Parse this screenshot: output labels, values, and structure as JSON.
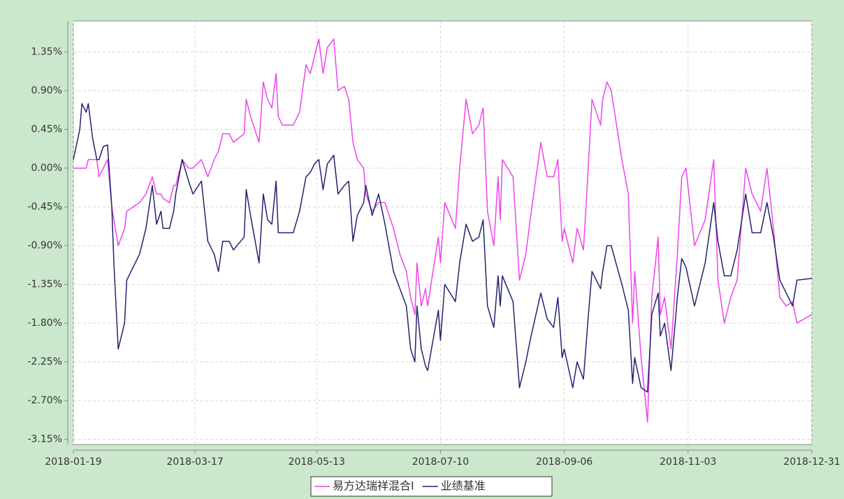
{
  "chart_data": {
    "type": "line",
    "x": [
      "2018-01-19",
      "2018-01-22",
      "2018-01-23",
      "2018-01-25",
      "2018-01-26",
      "2018-01-28",
      "2018-01-30",
      "2018-01-31",
      "2018-02-02",
      "2018-02-04",
      "2018-02-06",
      "2018-02-07",
      "2018-02-09",
      "2018-02-12",
      "2018-02-13",
      "2018-02-19",
      "2018-02-22",
      "2018-02-25",
      "2018-02-27",
      "2018-03-01",
      "2018-03-02",
      "2018-03-05",
      "2018-03-07",
      "2018-03-08",
      "2018-03-11",
      "2018-03-14",
      "2018-03-16",
      "2018-03-20",
      "2018-03-23",
      "2018-03-26",
      "2018-03-28",
      "2018-03-30",
      "2018-04-02",
      "2018-04-04",
      "2018-04-09",
      "2018-04-10",
      "2018-04-12",
      "2018-04-16",
      "2018-04-18",
      "2018-04-20",
      "2018-04-22",
      "2018-04-24",
      "2018-04-25",
      "2018-04-27",
      "2018-05-02",
      "2018-05-05",
      "2018-05-08",
      "2018-05-10",
      "2018-05-12",
      "2018-05-14",
      "2018-05-16",
      "2018-05-18",
      "2018-05-21",
      "2018-05-23",
      "2018-05-26",
      "2018-05-28",
      "2018-05-30",
      "2018-06-01",
      "2018-06-04",
      "2018-06-05",
      "2018-06-08",
      "2018-06-11",
      "2018-06-14",
      "2018-06-18",
      "2018-06-21",
      "2018-06-24",
      "2018-06-26",
      "2018-06-28",
      "2018-06-29",
      "2018-07-01",
      "2018-07-03",
      "2018-07-04",
      "2018-07-09",
      "2018-07-10",
      "2018-07-12",
      "2018-07-17",
      "2018-07-19",
      "2018-07-22",
      "2018-07-25",
      "2018-07-28",
      "2018-07-30",
      "2018-08-01",
      "2018-08-04",
      "2018-08-06",
      "2018-08-07",
      "2018-08-08",
      "2018-08-13",
      "2018-08-16",
      "2018-08-19",
      "2018-08-21",
      "2018-08-26",
      "2018-08-29",
      "2018-09-01",
      "2018-09-03",
      "2018-09-05",
      "2018-09-06",
      "2018-09-10",
      "2018-09-12",
      "2018-09-15",
      "2018-09-17",
      "2018-09-19",
      "2018-09-23",
      "2018-09-24",
      "2018-09-26",
      "2018-09-28",
      "2018-10-03",
      "2018-10-06",
      "2018-10-08",
      "2018-10-09",
      "2018-10-12",
      "2018-10-15",
      "2018-10-17",
      "2018-10-20",
      "2018-10-21",
      "2018-10-23",
      "2018-10-26",
      "2018-10-29",
      "2018-10-31",
      "2018-11-02",
      "2018-11-06",
      "2018-11-11",
      "2018-11-15",
      "2018-11-17",
      "2018-11-20",
      "2018-11-23",
      "2018-11-26",
      "2018-11-30",
      "2018-12-03",
      "2018-12-07",
      "2018-12-10",
      "2018-12-13",
      "2018-12-16",
      "2018-12-19",
      "2018-12-22",
      "2018-12-24",
      "2018-12-31"
    ],
    "series": [
      {
        "name": "易方达瑞祥混合I",
        "color": "#ee44ee",
        "values": [
          0,
          0,
          0,
          0,
          0.1,
          0.1,
          0.1,
          -0.1,
          0.0,
          0.1,
          -0.45,
          -0.6,
          -0.9,
          -0.7,
          -0.5,
          -0.4,
          -0.3,
          -0.1,
          -0.3,
          -0.3,
          -0.35,
          -0.4,
          -0.2,
          -0.2,
          0.1,
          0.0,
          0,
          0.1,
          -0.1,
          0.1,
          0.2,
          0.4,
          0.4,
          0.3,
          0.4,
          0.8,
          0.6,
          0.3,
          1.0,
          0.8,
          0.7,
          1.1,
          0.6,
          0.5,
          0.5,
          0.65,
          1.2,
          1.1,
          1.3,
          1.5,
          1.1,
          1.4,
          1.5,
          0.9,
          0.95,
          0.8,
          0.3,
          0.1,
          0.0,
          -0.3,
          -0.5,
          -0.4,
          -0.4,
          -0.7,
          -1.0,
          -1.2,
          -1.5,
          -1.7,
          -1.1,
          -1.6,
          -1.4,
          -1.6,
          -0.8,
          -1.1,
          -0.4,
          -0.7,
          0.0,
          0.8,
          0.4,
          0.5,
          0.7,
          -0.5,
          -0.9,
          -0.1,
          -0.6,
          0.1,
          -0.1,
          -1.3,
          -1.0,
          -0.6,
          0.3,
          -0.1,
          -0.1,
          0.1,
          -0.85,
          -0.7,
          -1.1,
          -0.7,
          -0.95,
          -0.1,
          0.8,
          0.5,
          0.8,
          1.0,
          0.9,
          0.1,
          -0.3,
          -1.8,
          -1.2,
          -2.2,
          -2.95,
          -1.5,
          -0.8,
          -1.7,
          -1.5,
          -2.1,
          -1.0,
          -0.1,
          0.0,
          -0.9,
          -0.6,
          0.1,
          -1.3,
          -1.8,
          -1.5,
          -1.3,
          0.0,
          -0.3,
          -0.5,
          0.0,
          -0.7,
          -1.5,
          -1.6,
          -1.55,
          -1.8,
          -1.7
        ]
      },
      {
        "name": "业绩基准",
        "color": "#22226e",
        "values": [
          0.1,
          0.45,
          0.75,
          0.65,
          0.75,
          0.35,
          0.1,
          0.1,
          0.25,
          0.27,
          -0.45,
          -1.1,
          -2.1,
          -1.8,
          -1.3,
          -1.0,
          -0.7,
          -0.2,
          -0.65,
          -0.5,
          -0.7,
          -0.7,
          -0.5,
          -0.3,
          0.1,
          -0.15,
          -0.3,
          -0.15,
          -0.85,
          -1.0,
          -1.2,
          -0.85,
          -0.85,
          -0.95,
          -0.8,
          -0.25,
          -0.55,
          -1.1,
          -0.3,
          -0.6,
          -0.65,
          -0.15,
          -0.75,
          -0.75,
          -0.75,
          -0.5,
          -0.1,
          -0.05,
          0.05,
          0.1,
          -0.25,
          0.05,
          0.15,
          -0.3,
          -0.2,
          -0.15,
          -0.85,
          -0.55,
          -0.4,
          -0.2,
          -0.55,
          -0.3,
          -0.65,
          -1.2,
          -1.4,
          -1.6,
          -2.1,
          -2.25,
          -1.6,
          -2.1,
          -2.3,
          -2.35,
          -1.65,
          -2.0,
          -1.35,
          -1.55,
          -1.1,
          -0.65,
          -0.85,
          -0.8,
          -0.6,
          -1.6,
          -1.85,
          -1.25,
          -1.6,
          -1.25,
          -1.55,
          -2.55,
          -2.25,
          -2.0,
          -1.45,
          -1.75,
          -1.85,
          -1.5,
          -2.2,
          -2.1,
          -2.55,
          -2.25,
          -2.45,
          -1.8,
          -1.2,
          -1.4,
          -1.2,
          -0.9,
          -0.9,
          -1.35,
          -1.65,
          -2.5,
          -2.2,
          -2.55,
          -2.6,
          -1.7,
          -1.45,
          -1.95,
          -1.8,
          -2.35,
          -1.5,
          -1.05,
          -1.15,
          -1.6,
          -1.1,
          -0.4,
          -0.85,
          -1.25,
          -1.25,
          -0.95,
          -0.3,
          -0.75,
          -0.75,
          -0.4,
          -0.8,
          -1.3,
          -1.45,
          -1.6,
          -1.3,
          -1.28
        ]
      }
    ],
    "xlim": [
      "2018-01-19",
      "2018-12-31"
    ],
    "xticks": [
      "2018-01-19",
      "2018-03-17",
      "2018-05-13",
      "2018-07-10",
      "2018-09-06",
      "2018-11-03",
      "2018-12-31"
    ],
    "ylim": [
      -3.21,
      1.71
    ],
    "yticks": [
      {
        "value": -3.15,
        "label": "-3.15%"
      },
      {
        "value": -2.7,
        "label": "-2.70%"
      },
      {
        "value": -2.25,
        "label": "-2.25%"
      },
      {
        "value": -1.8,
        "label": "-1.80%"
      },
      {
        "value": -1.35,
        "label": "-1.35%"
      },
      {
        "value": -0.9,
        "label": "-0.90%"
      },
      {
        "value": -0.45,
        "label": "-0.45%"
      },
      {
        "value": 0,
        "label": "0.00%"
      },
      {
        "value": 0.45,
        "label": "0.45%"
      },
      {
        "value": 0.9,
        "label": "0.90%"
      },
      {
        "value": 1.35,
        "label": "1.35%"
      }
    ],
    "grid": true,
    "legend": "bottom"
  }
}
